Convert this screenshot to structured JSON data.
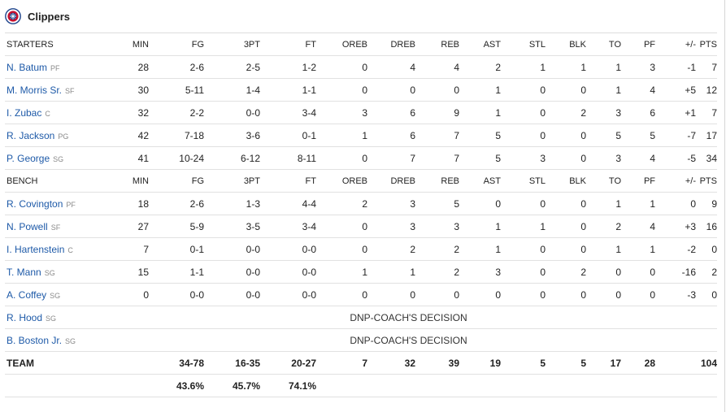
{
  "team": {
    "name": "Clippers",
    "logo_icon": "clippers-logo-icon"
  },
  "columns": [
    "MIN",
    "FG",
    "3PT",
    "FT",
    "OREB",
    "DREB",
    "REB",
    "AST",
    "STL",
    "BLK",
    "TO",
    "PF",
    "+/-",
    "PTS"
  ],
  "sections": [
    {
      "label": "STARTERS",
      "players": [
        {
          "name": "N. Batum",
          "pos": "PF",
          "stats": [
            "28",
            "2-6",
            "2-5",
            "1-2",
            "0",
            "4",
            "4",
            "2",
            "1",
            "1",
            "1",
            "3",
            "-1",
            "7"
          ]
        },
        {
          "name": "M. Morris Sr.",
          "pos": "SF",
          "stats": [
            "30",
            "5-11",
            "1-4",
            "1-1",
            "0",
            "0",
            "0",
            "1",
            "0",
            "0",
            "1",
            "4",
            "+5",
            "12"
          ]
        },
        {
          "name": "I. Zubac",
          "pos": "C",
          "stats": [
            "32",
            "2-2",
            "0-0",
            "3-4",
            "3",
            "6",
            "9",
            "1",
            "0",
            "2",
            "3",
            "6",
            "+1",
            "7"
          ]
        },
        {
          "name": "R. Jackson",
          "pos": "PG",
          "stats": [
            "42",
            "7-18",
            "3-6",
            "0-1",
            "1",
            "6",
            "7",
            "5",
            "0",
            "0",
            "5",
            "5",
            "-7",
            "17"
          ]
        },
        {
          "name": "P. George",
          "pos": "SG",
          "stats": [
            "41",
            "10-24",
            "6-12",
            "8-11",
            "0",
            "7",
            "7",
            "5",
            "3",
            "0",
            "3",
            "4",
            "-5",
            "34"
          ]
        }
      ]
    },
    {
      "label": "BENCH",
      "players": [
        {
          "name": "R. Covington",
          "pos": "PF",
          "stats": [
            "18",
            "2-6",
            "1-3",
            "4-4",
            "2",
            "3",
            "5",
            "0",
            "0",
            "0",
            "1",
            "1",
            "0",
            "9"
          ]
        },
        {
          "name": "N. Powell",
          "pos": "SF",
          "stats": [
            "27",
            "5-9",
            "3-5",
            "3-4",
            "0",
            "3",
            "3",
            "1",
            "1",
            "0",
            "2",
            "4",
            "+3",
            "16"
          ]
        },
        {
          "name": "I. Hartenstein",
          "pos": "C",
          "stats": [
            "7",
            "0-1",
            "0-0",
            "0-0",
            "0",
            "2",
            "2",
            "1",
            "0",
            "0",
            "1",
            "1",
            "-2",
            "0"
          ]
        },
        {
          "name": "T. Mann",
          "pos": "SG",
          "stats": [
            "15",
            "1-1",
            "0-0",
            "0-0",
            "1",
            "1",
            "2",
            "3",
            "0",
            "2",
            "0",
            "0",
            "-16",
            "2"
          ]
        },
        {
          "name": "A. Coffey",
          "pos": "SG",
          "stats": [
            "0",
            "0-0",
            "0-0",
            "0-0",
            "0",
            "0",
            "0",
            "0",
            "0",
            "0",
            "0",
            "0",
            "-3",
            "0"
          ]
        },
        {
          "name": "R. Hood",
          "pos": "SG",
          "dnp": "DNP-COACH'S DECISION"
        },
        {
          "name": "B. Boston Jr.",
          "pos": "SG",
          "dnp": "DNP-COACH'S DECISION"
        }
      ]
    }
  ],
  "totals": {
    "label": "TEAM",
    "stats": [
      "",
      "34-78",
      "16-35",
      "20-27",
      "7",
      "32",
      "39",
      "19",
      "5",
      "5",
      "17",
      "28",
      "",
      "104"
    ],
    "percentages": [
      "",
      "43.6%",
      "45.7%",
      "74.1%",
      "",
      "",
      "",
      "",
      "",
      "",
      "",
      "",
      "",
      ""
    ]
  },
  "colors": {
    "link": "#1e5aa8",
    "position": "#8a8a8a",
    "divider": "#e1e1e1"
  }
}
